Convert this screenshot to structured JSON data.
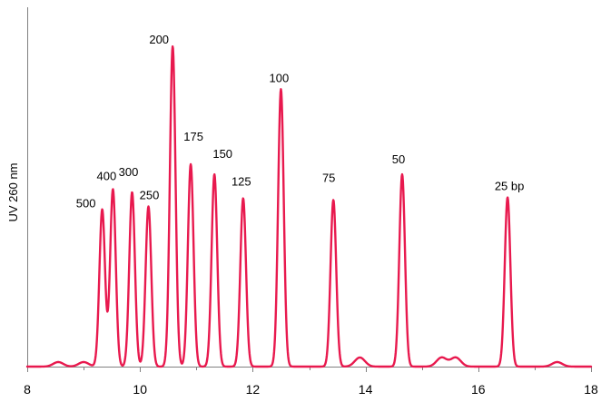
{
  "chart_data": {
    "type": "line",
    "title": "",
    "xlabel": "",
    "ylabel": "UV 260 nm",
    "xlim": [
      8,
      18
    ],
    "ylim": [
      0,
      100
    ],
    "x_ticks": [
      "8",
      "10",
      "12",
      "14",
      "16",
      "18"
    ],
    "x_tick_values": [
      8,
      10,
      12,
      14,
      16,
      18
    ],
    "minor_x_tick_values": [
      9,
      11,
      13,
      15,
      17
    ],
    "grid": false,
    "y_ticks_shown": false,
    "line_color": "#e8194e",
    "baseline": 0,
    "series": [
      {
        "peaks": [
          {
            "label": "500",
            "x": 9.33,
            "height": 48.4
          },
          {
            "label": "400",
            "x": 9.52,
            "height": 54.6
          },
          {
            "label": "300",
            "x": 9.86,
            "height": 53.7
          },
          {
            "label": "250",
            "x": 10.15,
            "height": 49.3
          },
          {
            "label": "200",
            "x": 10.58,
            "height": 98.6
          },
          {
            "label": "175",
            "x": 10.9,
            "height": 62.3
          },
          {
            "label": "150",
            "x": 11.32,
            "height": 59.2
          },
          {
            "label": "125",
            "x": 11.83,
            "height": 51.8
          },
          {
            "label": "100",
            "x": 12.5,
            "height": 85.4
          },
          {
            "label": "75",
            "x": 13.43,
            "height": 51.3
          },
          {
            "label": "50",
            "x": 14.65,
            "height": 59.2
          },
          {
            "label": "25 bp",
            "x": 16.52,
            "height": 52.1
          }
        ],
        "baseline_bumps": [
          {
            "x": 8.55,
            "height": 1.4
          },
          {
            "x": 9.0,
            "height": 1.4
          },
          {
            "x": 13.9,
            "height": 2.8
          },
          {
            "x": 15.35,
            "height": 2.8
          },
          {
            "x": 15.6,
            "height": 2.8
          },
          {
            "x": 17.4,
            "height": 1.4
          }
        ]
      }
    ]
  }
}
